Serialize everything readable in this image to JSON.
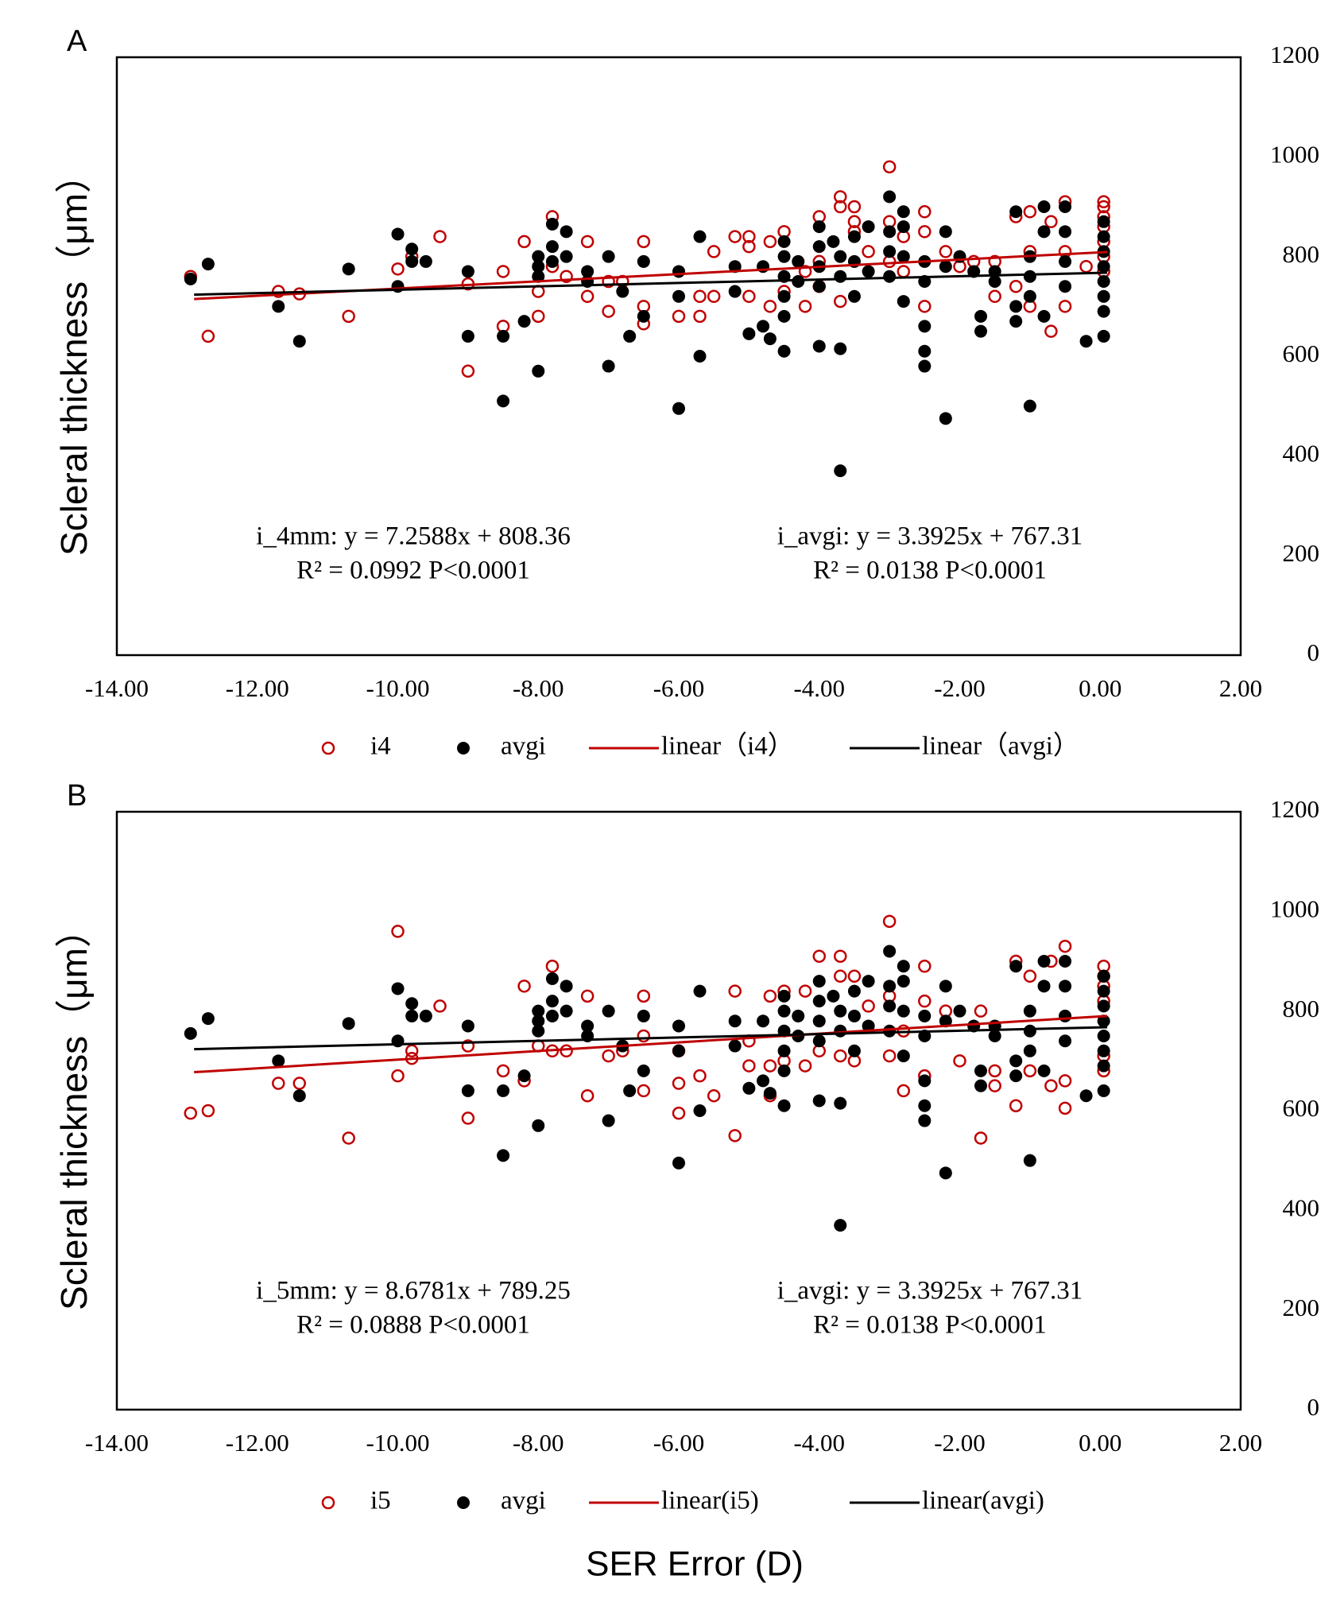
{
  "chart_data": [
    {
      "type": "scatter",
      "panel_label": "A",
      "ylabel": "Scleral thickness（μm）",
      "xlim": [
        -14,
        2
      ],
      "xticks": [
        {
          "value": -14,
          "label": "-14.00"
        },
        {
          "value": -12,
          "label": "-12.00"
        },
        {
          "value": -10,
          "label": "-10.00"
        },
        {
          "value": -8,
          "label": "-8.00"
        },
        {
          "value": -6,
          "label": "-6.00"
        },
        {
          "value": -4,
          "label": "-4.00"
        },
        {
          "value": -2,
          "label": "-2.00"
        },
        {
          "value": 0,
          "label": "0.00"
        },
        {
          "value": 2,
          "label": "2.00"
        }
      ],
      "ylim": [
        0,
        1200
      ],
      "yticks": [
        0,
        200,
        400,
        600,
        800,
        1000,
        1200
      ],
      "series": [
        {
          "name": "i4",
          "color": "#c00000",
          "marker": "open",
          "x": [
            -12.95,
            -12.7,
            -11.7,
            -11.4,
            -10.7,
            -10.0,
            -9.8,
            -9.4,
            -9.0,
            -9.0,
            -8.5,
            -8.5,
            -8.2,
            -8.0,
            -8.0,
            -7.8,
            -7.8,
            -7.6,
            -7.3,
            -7.3,
            -7.0,
            -7.0,
            -6.8,
            -6.5,
            -6.5,
            -6.5,
            -6.0,
            -5.7,
            -5.7,
            -5.5,
            -5.5,
            -5.2,
            -5.0,
            -5.0,
            -5.0,
            -4.7,
            -4.7,
            -4.5,
            -4.5,
            -4.2,
            -4.2,
            -4.0,
            -4.0,
            -4.0,
            -3.7,
            -3.7,
            -3.7,
            -3.5,
            -3.5,
            -3.5,
            -3.3,
            -3.0,
            -3.0,
            -3.0,
            -2.8,
            -2.8,
            -2.5,
            -2.5,
            -2.5,
            -2.2,
            -2.0,
            -1.8,
            -1.5,
            -1.5,
            -1.2,
            -1.2,
            -1.0,
            -1.0,
            -1.0,
            -0.7,
            -0.7,
            -0.5,
            -0.5,
            -0.5,
            -0.2,
            0.05,
            0.05,
            0.05,
            0.05,
            0.05,
            0.05,
            0.05
          ],
          "values": [
            760,
            640,
            730,
            725,
            680,
            775,
            800,
            840,
            745,
            570,
            770,
            660,
            830,
            730,
            680,
            880,
            780,
            760,
            830,
            720,
            750,
            690,
            750,
            830,
            700,
            665,
            680,
            720,
            680,
            810,
            720,
            840,
            840,
            820,
            720,
            830,
            700,
            850,
            730,
            700,
            770,
            880,
            790,
            740,
            920,
            900,
            710,
            900,
            870,
            850,
            810,
            980,
            870,
            790,
            840,
            770,
            890,
            850,
            700,
            810,
            780,
            790,
            790,
            720,
            880,
            740,
            890,
            810,
            700,
            870,
            650,
            910,
            810,
            700,
            780,
            910,
            900,
            880,
            860,
            830,
            800,
            770
          ]
        },
        {
          "name": "avgi",
          "color": "#000000",
          "marker": "filled",
          "x": [
            -12.95,
            -12.7,
            -11.7,
            -11.4,
            -10.7,
            -10.0,
            -10.0,
            -9.8,
            -9.8,
            -9.6,
            -9.0,
            -9.0,
            -8.5,
            -8.5,
            -8.2,
            -8.0,
            -8.0,
            -8.0,
            -8.0,
            -7.8,
            -7.8,
            -7.8,
            -7.6,
            -7.6,
            -7.3,
            -7.3,
            -7.0,
            -7.0,
            -6.8,
            -6.7,
            -6.5,
            -6.5,
            -6.0,
            -6.0,
            -6.0,
            -5.7,
            -5.7,
            -5.2,
            -5.2,
            -5.0,
            -4.8,
            -4.8,
            -4.7,
            -4.5,
            -4.5,
            -4.5,
            -4.5,
            -4.5,
            -4.5,
            -4.3,
            -4.3,
            -4.0,
            -4.0,
            -4.0,
            -4.0,
            -4.0,
            -3.8,
            -3.7,
            -3.7,
            -3.7,
            -3.7,
            -3.5,
            -3.5,
            -3.5,
            -3.3,
            -3.3,
            -3.0,
            -3.0,
            -3.0,
            -3.0,
            -2.8,
            -2.8,
            -2.8,
            -2.8,
            -2.5,
            -2.5,
            -2.5,
            -2.5,
            -2.5,
            -2.2,
            -2.2,
            -2.2,
            -2.0,
            -1.8,
            -1.7,
            -1.7,
            -1.5,
            -1.5,
            -1.2,
            -1.2,
            -1.2,
            -1.0,
            -1.0,
            -1.0,
            -1.0,
            -0.8,
            -0.8,
            -0.8,
            -0.5,
            -0.5,
            -0.5,
            -0.5,
            -0.2,
            0.05,
            0.05,
            0.05,
            0.05,
            0.05,
            0.05,
            0.05,
            0.05
          ],
          "values": [
            755,
            785,
            700,
            630,
            775,
            845,
            740,
            815,
            790,
            790,
            770,
            640,
            640,
            510,
            670,
            800,
            570,
            780,
            760,
            865,
            820,
            790,
            850,
            800,
            770,
            750,
            800,
            580,
            730,
            640,
            790,
            680,
            770,
            720,
            495,
            840,
            600,
            780,
            730,
            645,
            660,
            780,
            635,
            830,
            800,
            760,
            720,
            680,
            610,
            790,
            750,
            860,
            820,
            780,
            740,
            620,
            830,
            800,
            760,
            615,
            370,
            840,
            790,
            720,
            860,
            770,
            920,
            850,
            810,
            760,
            890,
            860,
            800,
            710,
            790,
            750,
            660,
            610,
            580,
            850,
            780,
            475,
            800,
            770,
            680,
            650,
            770,
            750,
            890,
            700,
            670,
            800,
            760,
            720,
            500,
            900,
            850,
            680,
            900,
            850,
            790,
            740,
            630,
            870,
            840,
            810,
            780,
            750,
            720,
            690,
            640
          ]
        },
        {
          "name": "linear（i4）",
          "type": "line",
          "color": "#c00000",
          "x": [
            -12.9,
            0.1
          ],
          "values": [
            714.72,
            809.09
          ]
        },
        {
          "name": "linear（avgi）",
          "type": "line",
          "color": "#000000",
          "x": [
            -12.9,
            0.1
          ],
          "values": [
            723.55,
            767.65
          ]
        }
      ],
      "annotations": [
        [
          "i_4mm: y = 7.2588x + 808.36",
          "R² = 0.0992   P<0.0001"
        ],
        [
          "i_avgi: y = 3.3925x + 767.31",
          "R² = 0.0138    P<0.0001"
        ]
      ]
    },
    {
      "type": "scatter",
      "panel_label": "B",
      "ylabel": "Scleral thickness（μm）",
      "xlabel": "SER Error (D)",
      "xlim": [
        -14,
        2
      ],
      "xticks": [
        {
          "value": -14,
          "label": "-14.00"
        },
        {
          "value": -12,
          "label": "-12.00"
        },
        {
          "value": -10,
          "label": "-10.00"
        },
        {
          "value": -8,
          "label": "-8.00"
        },
        {
          "value": -6,
          "label": "-6.00"
        },
        {
          "value": -4,
          "label": "-4.00"
        },
        {
          "value": -2,
          "label": "-2.00"
        },
        {
          "value": 0,
          "label": "0.00"
        },
        {
          "value": 2,
          "label": "2.00"
        }
      ],
      "ylim": [
        0,
        1200
      ],
      "yticks": [
        0,
        200,
        400,
        600,
        800,
        1000,
        1200
      ],
      "series": [
        {
          "name": "i5",
          "color": "#c00000",
          "marker": "open",
          "x": [
            -12.95,
            -12.7,
            -11.7,
            -11.4,
            -10.7,
            -10.0,
            -10.0,
            -9.8,
            -9.8,
            -9.4,
            -9.0,
            -9.0,
            -8.5,
            -8.2,
            -8.2,
            -8.0,
            -7.8,
            -7.8,
            -7.6,
            -7.3,
            -7.3,
            -7.0,
            -6.8,
            -6.5,
            -6.5,
            -6.5,
            -6.0,
            -6.0,
            -6.0,
            -5.7,
            -5.5,
            -5.2,
            -5.2,
            -5.0,
            -5.0,
            -4.7,
            -4.7,
            -4.7,
            -4.5,
            -4.5,
            -4.2,
            -4.2,
            -4.0,
            -4.0,
            -3.7,
            -3.7,
            -3.7,
            -3.5,
            -3.5,
            -3.3,
            -3.0,
            -3.0,
            -3.0,
            -2.8,
            -2.8,
            -2.5,
            -2.5,
            -2.5,
            -2.2,
            -2.0,
            -1.7,
            -1.7,
            -1.5,
            -1.5,
            -1.2,
            -1.2,
            -1.0,
            -1.0,
            -0.7,
            -0.7,
            -0.5,
            -0.5,
            -0.5,
            0.05,
            0.05,
            0.05,
            0.05,
            0.05,
            0.05
          ],
          "values": [
            595,
            600,
            655,
            655,
            545,
            960,
            670,
            720,
            705,
            810,
            730,
            585,
            680,
            850,
            660,
            730,
            890,
            720,
            720,
            830,
            630,
            710,
            720,
            830,
            750,
            640,
            720,
            655,
            595,
            670,
            630,
            840,
            550,
            740,
            690,
            830,
            690,
            630,
            840,
            700,
            840,
            690,
            910,
            720,
            910,
            870,
            710,
            870,
            700,
            810,
            980,
            830,
            710,
            760,
            640,
            890,
            820,
            670,
            800,
            700,
            800,
            545,
            680,
            650,
            900,
            610,
            870,
            680,
            900,
            650,
            930,
            660,
            605,
            890,
            870,
            850,
            820,
            710,
            680
          ]
        },
        {
          "name": "avgi",
          "color": "#000000",
          "marker": "filled",
          "x": [
            -12.95,
            -12.7,
            -11.7,
            -11.4,
            -10.7,
            -10.0,
            -10.0,
            -9.8,
            -9.8,
            -9.6,
            -9.0,
            -9.0,
            -8.5,
            -8.5,
            -8.2,
            -8.0,
            -8.0,
            -8.0,
            -8.0,
            -7.8,
            -7.8,
            -7.8,
            -7.6,
            -7.6,
            -7.3,
            -7.3,
            -7.0,
            -7.0,
            -6.8,
            -6.7,
            -6.5,
            -6.5,
            -6.0,
            -6.0,
            -6.0,
            -5.7,
            -5.7,
            -5.2,
            -5.2,
            -5.0,
            -4.8,
            -4.8,
            -4.7,
            -4.5,
            -4.5,
            -4.5,
            -4.5,
            -4.5,
            -4.5,
            -4.3,
            -4.3,
            -4.0,
            -4.0,
            -4.0,
            -4.0,
            -4.0,
            -3.8,
            -3.7,
            -3.7,
            -3.7,
            -3.7,
            -3.5,
            -3.5,
            -3.5,
            -3.3,
            -3.3,
            -3.0,
            -3.0,
            -3.0,
            -3.0,
            -2.8,
            -2.8,
            -2.8,
            -2.8,
            -2.5,
            -2.5,
            -2.5,
            -2.5,
            -2.5,
            -2.2,
            -2.2,
            -2.2,
            -2.0,
            -1.8,
            -1.7,
            -1.7,
            -1.5,
            -1.5,
            -1.2,
            -1.2,
            -1.2,
            -1.0,
            -1.0,
            -1.0,
            -1.0,
            -0.8,
            -0.8,
            -0.8,
            -0.5,
            -0.5,
            -0.5,
            -0.5,
            -0.2,
            0.05,
            0.05,
            0.05,
            0.05,
            0.05,
            0.05,
            0.05,
            0.05
          ],
          "values": [
            755,
            785,
            700,
            630,
            775,
            845,
            740,
            815,
            790,
            790,
            770,
            640,
            640,
            510,
            670,
            800,
            570,
            780,
            760,
            865,
            820,
            790,
            850,
            800,
            770,
            750,
            800,
            580,
            730,
            640,
            790,
            680,
            770,
            720,
            495,
            840,
            600,
            780,
            730,
            645,
            660,
            780,
            635,
            830,
            800,
            760,
            720,
            680,
            610,
            790,
            750,
            860,
            820,
            780,
            740,
            620,
            830,
            800,
            760,
            615,
            370,
            840,
            790,
            720,
            860,
            770,
            920,
            850,
            810,
            760,
            890,
            860,
            800,
            710,
            790,
            750,
            660,
            610,
            580,
            850,
            780,
            475,
            800,
            770,
            680,
            650,
            770,
            750,
            890,
            700,
            670,
            800,
            760,
            720,
            500,
            900,
            850,
            680,
            900,
            850,
            790,
            740,
            630,
            870,
            840,
            810,
            780,
            750,
            720,
            690,
            640
          ]
        },
        {
          "name": "linear(i5)",
          "type": "line",
          "color": "#c00000",
          "x": [
            -12.9,
            0.1
          ],
          "values": [
            677.3,
            790.12
          ]
        },
        {
          "name": "linear(avgi)",
          "type": "line",
          "color": "#000000",
          "x": [
            -12.9,
            0.1
          ],
          "values": [
            723.55,
            767.65
          ]
        }
      ],
      "annotations": [
        [
          "i_5mm: y = 8.6781x + 789.25",
          "R² = 0.0888   P<0.0001"
        ],
        [
          "i_avgi: y = 3.3925x + 767.31",
          "R² = 0.0138    P<0.0001"
        ]
      ]
    }
  ]
}
